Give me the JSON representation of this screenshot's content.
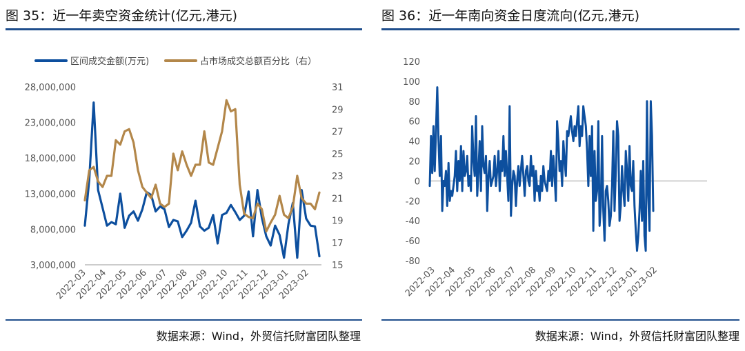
{
  "left": {
    "title": "图 35：近一年卖空资金统计(亿元,港元)",
    "source": "数据来源：Wind，外贸信托财富团队整理",
    "colors": {
      "series1": "#0d4f9e",
      "series2": "#b3874a",
      "rule": "#1f4e8c"
    },
    "chart_data": {
      "type": "line",
      "legend_position": "top",
      "grid": false,
      "x_tick_labels": [
        "2022-03",
        "2022-04",
        "2022-05",
        "2022-06",
        "2022-07",
        "2022-08",
        "2022-09",
        "2022-10",
        "2022-11",
        "2022-12",
        "2023-01",
        "2023-02"
      ],
      "y_left_ticks": [
        "28,000,000",
        "23,000,000",
        "18,000,000",
        "13,000,000",
        "8,000,000",
        "3,000,000"
      ],
      "y_left_lim": [
        3000000,
        28000000
      ],
      "y_right_ticks": [
        "31",
        "29",
        "27",
        "25",
        "23",
        "21",
        "19",
        "17",
        "15"
      ],
      "y_right_lim": [
        15,
        31
      ],
      "series": [
        {
          "name": "区间成交金额(万元)",
          "axis": "left",
          "values": [
            8500000,
            15000000,
            25800000,
            13500000,
            11000000,
            8500000,
            9000000,
            8700000,
            13000000,
            8200000,
            9900000,
            10500000,
            9200000,
            10800000,
            13200000,
            12800000,
            10500000,
            11200000,
            10800000,
            8300000,
            9300000,
            9100000,
            6900000,
            7800000,
            8900000,
            12000000,
            8400000,
            7800000,
            8200000,
            10000000,
            6000000,
            10000000,
            10300000,
            11400000,
            10400000,
            9300000,
            9900000,
            13300000,
            7000000,
            13500000,
            9600000,
            7000000,
            5700000,
            8500000,
            7200000,
            4000000,
            8700000,
            11700000,
            4000000,
            13500000,
            9500000,
            8500000,
            8400000,
            4200000
          ]
        },
        {
          "name": "占市场成交总额百分比（右）",
          "axis": "right",
          "values": [
            20.8,
            23.5,
            23.8,
            22.5,
            22.0,
            23.0,
            23.0,
            26.2,
            25.8,
            27.0,
            27.2,
            26.0,
            23.5,
            22.0,
            21.5,
            21.0,
            22.2,
            20.5,
            20.2,
            20.5,
            25.0,
            23.5,
            25.2,
            24.0,
            23.0,
            24.0,
            24.0,
            27.0,
            24.2,
            24.0,
            25.5,
            27.0,
            29.8,
            28.8,
            29.0,
            22.2,
            19.6,
            19.3,
            19.2,
            20.5,
            20.0,
            18.0,
            18.8,
            19.5,
            21.2,
            19.5,
            19.2,
            20.2,
            23.0,
            21.0,
            20.5,
            20.5,
            20.0,
            21.5
          ]
        }
      ]
    }
  },
  "right": {
    "title": "图 36：近一年南向资金日度流向(亿元,港元)",
    "source": "数据来源：Wind，外贸信托财富团队整理",
    "colors": {
      "series1": "#0d4f9e",
      "rule": "#1f4e8c"
    },
    "chart_data": {
      "type": "line",
      "grid": false,
      "x_tick_labels": [
        "2022-03",
        "2022-04",
        "2022-05",
        "2022-06",
        "2022-07",
        "2022-08",
        "2022-09",
        "2022-10",
        "2022-11",
        "2022-12",
        "2023-01",
        "2023-02"
      ],
      "y_ticks": [
        "120",
        "100",
        "80",
        "60",
        "40",
        "20",
        "0",
        "-20",
        "-40",
        "-60",
        "-80"
      ],
      "y_lim": [
        -80,
        120
      ],
      "series": [
        {
          "values": [
            -5,
            45,
            8,
            55,
            10,
            52,
            94,
            40,
            5,
            45,
            -30,
            0,
            -5,
            10,
            -25,
            18,
            -20,
            -10,
            -15,
            -5,
            5,
            30,
            -10,
            20,
            0,
            35,
            -10,
            30,
            5,
            10,
            25,
            -5,
            5,
            -10,
            55,
            20,
            5,
            65,
            -15,
            10,
            40,
            -10,
            55,
            15,
            8,
            25,
            -30,
            5,
            20,
            -5,
            0,
            5,
            25,
            -5,
            10,
            30,
            -10,
            20,
            10,
            45,
            5,
            30,
            5,
            -20,
            75,
            -35,
            -5,
            10,
            5,
            -25,
            0,
            15,
            -5,
            10,
            25,
            5,
            -15,
            10,
            15,
            0,
            -5,
            25,
            5,
            15,
            -20,
            10,
            -10,
            -5,
            -20,
            5,
            -10,
            15,
            0,
            -5,
            -10,
            10,
            0,
            30,
            -5,
            25,
            5,
            -20,
            60,
            40,
            10,
            20,
            -5,
            40,
            20,
            5,
            50,
            45,
            55,
            65,
            50,
            40,
            55,
            45,
            60,
            75,
            35,
            55,
            45,
            75,
            65,
            55,
            30,
            -5,
            45,
            5,
            55,
            -50,
            30,
            -20,
            -10,
            60,
            -45,
            -25,
            45,
            -30,
            -60,
            -10,
            -5,
            -20,
            -45,
            -35,
            -5,
            50,
            -30,
            10,
            60,
            45,
            -40,
            -25,
            15,
            -10,
            -25,
            30,
            10,
            -20,
            35,
            -5,
            -10,
            20,
            -25,
            -50,
            -70,
            -55,
            -30,
            10,
            -40,
            20,
            -55,
            -70,
            80,
            -15,
            -50,
            80,
            45,
            -30
          ]
        }
      ]
    }
  }
}
